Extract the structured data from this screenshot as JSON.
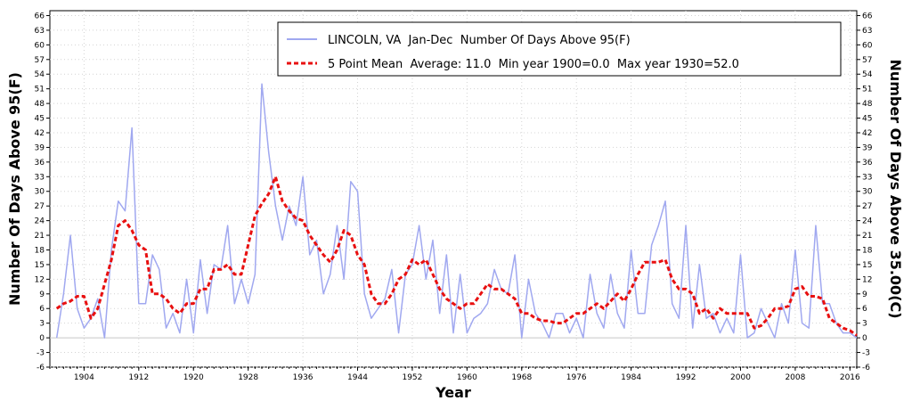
{
  "chart_data": {
    "type": "line",
    "xlabel": "Year",
    "ylabel_left": "Number Of Days Above 95(F)",
    "ylabel_right": "Number Of Days Above 35.00(C)",
    "xlim": [
      1899,
      2017
    ],
    "ylim": [
      -6,
      67
    ],
    "x_ticks": [
      1904,
      1912,
      1920,
      1928,
      1936,
      1944,
      1952,
      1960,
      1968,
      1976,
      1984,
      1992,
      2000,
      2008,
      2016
    ],
    "y_ticks": [
      -6,
      -3,
      0,
      3,
      6,
      9,
      12,
      15,
      18,
      21,
      24,
      27,
      30,
      33,
      36,
      39,
      42,
      45,
      48,
      51,
      54,
      57,
      60,
      63,
      66
    ],
    "grid": true,
    "legend_position": "top-right",
    "series": [
      {
        "name": "LINCOLN, VA  Jan-Dec  Number Of Days Above 95(F)",
        "style": "solid",
        "color": "#a0a8f0",
        "x": [
          1900,
          1901,
          1902,
          1903,
          1904,
          1905,
          1906,
          1907,
          1908,
          1909,
          1910,
          1911,
          1912,
          1913,
          1914,
          1915,
          1916,
          1917,
          1918,
          1919,
          1920,
          1921,
          1922,
          1923,
          1924,
          1925,
          1926,
          1927,
          1928,
          1929,
          1930,
          1931,
          1932,
          1933,
          1934,
          1935,
          1936,
          1937,
          1938,
          1939,
          1940,
          1941,
          1942,
          1943,
          1944,
          1945,
          1946,
          1947,
          1948,
          1949,
          1950,
          1951,
          1952,
          1953,
          1954,
          1955,
          1956,
          1957,
          1958,
          1959,
          1960,
          1961,
          1962,
          1963,
          1964,
          1965,
          1966,
          1967,
          1968,
          1969,
          1970,
          1971,
          1972,
          1973,
          1974,
          1975,
          1976,
          1977,
          1978,
          1979,
          1980,
          1981,
          1982,
          1983,
          1984,
          1985,
          1986,
          1987,
          1988,
          1989,
          1990,
          1991,
          1992,
          1993,
          1994,
          1995,
          1996,
          1997,
          1998,
          1999,
          2000,
          2001,
          2002,
          2003,
          2004,
          2005,
          2006,
          2007,
          2008,
          2009,
          2010,
          2011,
          2012,
          2013,
          2014,
          2015,
          2016,
          2017
        ],
        "values": [
          0,
          9,
          21,
          6,
          2,
          4,
          8,
          0,
          18,
          28,
          26,
          43,
          7,
          7,
          17,
          14,
          2,
          5,
          1,
          12,
          1,
          16,
          5,
          15,
          14,
          23,
          7,
          12,
          7,
          13,
          52,
          38,
          27,
          20,
          27,
          23,
          33,
          17,
          20,
          9,
          13,
          23,
          12,
          32,
          30,
          9,
          4,
          6,
          8,
          14,
          1,
          13,
          15,
          23,
          12,
          20,
          5,
          17,
          1,
          13,
          1,
          4,
          5,
          7,
          14,
          10,
          9,
          17,
          0,
          12,
          5,
          3,
          0,
          5,
          5,
          1,
          4,
          0,
          13,
          5,
          2,
          13,
          5,
          2,
          18,
          5,
          5,
          19,
          23,
          28,
          7,
          4,
          23,
          2,
          15,
          4,
          5,
          1,
          4,
          1,
          17,
          0,
          1,
          6,
          3,
          0,
          7,
          3,
          18,
          3,
          2,
          23,
          7,
          7,
          3,
          1,
          1,
          0
        ]
      },
      {
        "name": "5 Point Mean  Average: 11.0  Min year 1900=0.0  Max year 1930=52.0",
        "style": "dashed",
        "color": "#e81010",
        "x": [
          1900,
          1901,
          1902,
          1903,
          1904,
          1905,
          1906,
          1907,
          1908,
          1909,
          1910,
          1911,
          1912,
          1913,
          1914,
          1915,
          1916,
          1917,
          1918,
          1919,
          1920,
          1921,
          1922,
          1923,
          1924,
          1925,
          1926,
          1927,
          1928,
          1929,
          1930,
          1931,
          1932,
          1933,
          1934,
          1935,
          1936,
          1937,
          1938,
          1939,
          1940,
          1941,
          1942,
          1943,
          1944,
          1945,
          1946,
          1947,
          1948,
          1949,
          1950,
          1951,
          1952,
          1953,
          1954,
          1955,
          1956,
          1957,
          1958,
          1959,
          1960,
          1961,
          1962,
          1963,
          1964,
          1965,
          1966,
          1967,
          1968,
          1969,
          1970,
          1971,
          1972,
          1973,
          1974,
          1975,
          1976,
          1977,
          1978,
          1979,
          1980,
          1981,
          1982,
          1983,
          1984,
          1985,
          1986,
          1987,
          1988,
          1989,
          1990,
          1991,
          1992,
          1993,
          1994,
          1995,
          1996,
          1997,
          1998,
          1999,
          2000,
          2001,
          2002,
          2003,
          2004,
          2005,
          2006,
          2007,
          2008,
          2009,
          2010,
          2011,
          2012,
          2013,
          2014,
          2015,
          2016,
          2017
        ],
        "values": [
          6,
          7,
          7.5,
          8.5,
          8.5,
          4,
          6,
          11,
          16,
          23,
          24,
          22,
          19,
          18,
          9,
          9,
          8,
          6,
          5,
          7,
          7,
          10,
          10,
          14,
          14,
          15,
          13,
          13,
          19,
          25,
          27.5,
          29.5,
          33,
          28,
          26,
          24.5,
          24,
          21,
          19,
          17,
          15.5,
          18,
          22,
          21,
          17,
          15,
          9,
          7,
          7,
          9,
          12,
          13,
          16,
          15,
          16,
          13,
          10,
          8,
          7,
          6,
          7,
          7,
          9,
          11,
          10,
          10,
          9,
          8,
          5,
          5,
          4,
          3.5,
          3.5,
          3,
          3,
          4,
          5,
          5,
          6,
          7,
          6,
          7.5,
          9,
          7.5,
          10,
          13,
          15.5,
          15.5,
          15.5,
          16,
          12,
          10,
          10,
          9,
          5,
          6,
          4,
          6,
          5,
          5,
          5,
          5,
          2,
          2.5,
          4,
          6,
          6,
          6.5,
          10,
          10.5,
          8.5,
          8.5,
          8,
          4,
          3,
          2,
          1.5,
          0.5
        ]
      }
    ]
  }
}
